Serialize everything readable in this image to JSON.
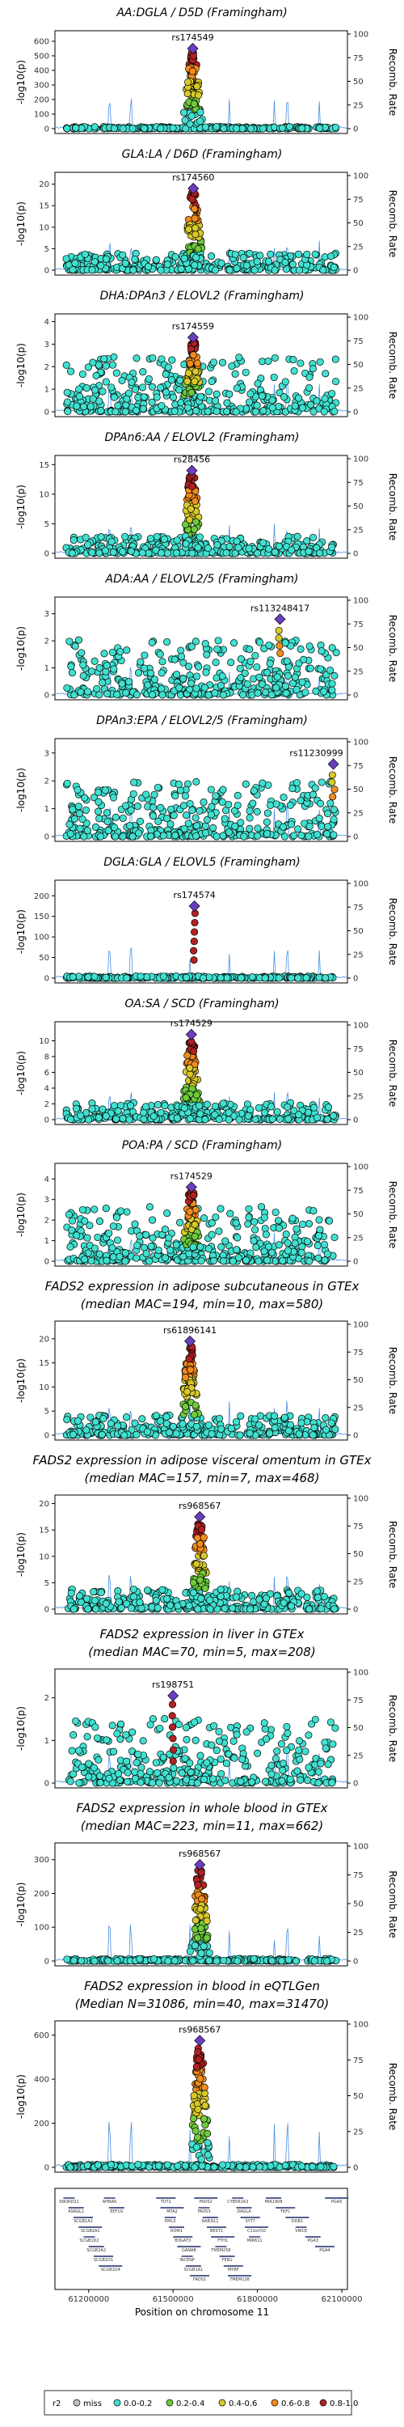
{
  "chart_data": {
    "type": "scatter",
    "colors": {
      "miss": "#bfbfbf",
      "bin1": "#40e0d0",
      "bin2": "#6ecb3c",
      "bin3": "#d8c92a",
      "bin4": "#f08c1e",
      "bin5": "#b22222",
      "lead": "#6a3fbf",
      "recomb": "#4a90e2"
    },
    "recomb_label": "Recomb. Rate",
    "recomb_ticks": [
      0,
      25,
      50,
      75,
      100
    ],
    "panels": [
      {
        "title_lines": [
          "AA:DGLA / D5D (Framingham)"
        ],
        "ymax": 650,
        "yticks": [
          0,
          100,
          200,
          300,
          400,
          500,
          600
        ],
        "ylabel": "-log10(p)",
        "lead_snp": "rs174549",
        "lead_y": 550,
        "lead_pos": 61570000,
        "background": "flat",
        "peak_shape": "tower"
      },
      {
        "title_lines": [
          "GLA:LA / D6D (Framingham)"
        ],
        "ymax": 22,
        "yticks": [
          0,
          5,
          10,
          15,
          20
        ],
        "ylabel": "-log10(p)",
        "lead_snp": "rs174560",
        "lead_y": 19,
        "lead_pos": 61572000,
        "background": "low",
        "peak_shape": "tower"
      },
      {
        "title_lines": [
          "DHA:DPAn3 / ELOVL2 (Framingham)"
        ],
        "ymax": 4.2,
        "yticks": [
          0,
          1,
          2,
          3,
          4
        ],
        "ylabel": "-log10(p)",
        "lead_snp": "rs174559",
        "lead_y": 3.3,
        "lead_pos": 61571000,
        "background": "dense",
        "peak_shape": "tower"
      },
      {
        "title_lines": [
          "DPAn6:AA / ELOVL2 (Framingham)"
        ],
        "ymax": 16,
        "yticks": [
          0,
          5,
          10,
          15
        ],
        "ylabel": "-log10(p)",
        "lead_snp": "rs28456",
        "lead_y": 14,
        "lead_pos": 61567000,
        "background": "low",
        "peak_shape": "tower"
      },
      {
        "title_lines": [
          "ADA:AA / ELOVL2/5 (Framingham)"
        ],
        "ymax": 3.5,
        "yticks": [
          0,
          1,
          2,
          3
        ],
        "ylabel": "-log10(p)",
        "lead_snp": "rs113248417",
        "lead_y": 2.8,
        "lead_pos": 61880000,
        "background": "dense",
        "peak_shape": "none"
      },
      {
        "title_lines": [
          "DPAn3:EPA / ELOVL2/5 (Framingham)"
        ],
        "ymax": 3.4,
        "yticks": [
          0,
          1,
          2,
          3
        ],
        "ylabel": "-log10(p)",
        "lead_snp": "rs11230999",
        "lead_y": 2.6,
        "lead_pos": 62070000,
        "background": "dense",
        "peak_shape": "none"
      },
      {
        "title_lines": [
          "DGLA:GLA / ELOVL5 (Framingham)"
        ],
        "ymax": 230,
        "yticks": [
          0,
          50,
          100,
          150,
          200
        ],
        "ylabel": "-log10(p)",
        "lead_snp": "rs174574",
        "lead_y": 175,
        "lead_pos": 61576000,
        "background": "flat",
        "peak_shape": "sparse"
      },
      {
        "title_lines": [
          "OA:SA / SCD (Framingham)"
        ],
        "ymax": 12,
        "yticks": [
          0,
          2,
          4,
          6,
          8,
          10
        ],
        "ylabel": "-log10(p)",
        "lead_snp": "rs174529",
        "lead_y": 10.8,
        "lead_pos": 61565000,
        "background": "low",
        "peak_shape": "tower"
      },
      {
        "title_lines": [
          "POA:PA / SCD (Framingham)"
        ],
        "ymax": 4.6,
        "yticks": [
          0,
          1,
          2,
          3,
          4
        ],
        "ylabel": "-log10(p)",
        "lead_snp": "rs174529",
        "lead_y": 3.6,
        "lead_pos": 61565000,
        "background": "dense",
        "peak_shape": "tower"
      },
      {
        "title_lines": [
          "FADS2 expression in adipose subcutaneous in GTEx",
          "(median MAC=194, min=10, max=580)"
        ],
        "ymax": 23,
        "yticks": [
          0,
          5,
          10,
          15,
          20
        ],
        "ylabel": "-log10(p)",
        "lead_snp": "rs61896141",
        "lead_y": 19.5,
        "lead_pos": 61560000,
        "background": "low",
        "peak_shape": "tower"
      },
      {
        "title_lines": [
          "FADS2 expression in adipose visceral omentum in GTEx",
          "(median MAC=157, min=7, max=468)"
        ],
        "ymax": 21,
        "yticks": [
          0,
          5,
          10,
          15,
          20
        ],
        "ylabel": "-log10(p)",
        "lead_snp": "rs968567",
        "lead_y": 17.5,
        "lead_pos": 61595000,
        "background": "low",
        "peak_shape": "tower"
      },
      {
        "title_lines": [
          "FADS2 expression in liver in GTEx",
          "(median MAC=70, min=5, max=208)"
        ],
        "ymax": 2.6,
        "yticks": [
          0,
          1,
          2
        ],
        "ylabel": "-log10(p)",
        "lead_snp": "rs198751",
        "lead_y": 2.05,
        "lead_pos": 61500000,
        "background": "dense",
        "peak_shape": "sparse"
      },
      {
        "title_lines": [
          "FADS2 expression in whole blood in GTEx",
          "(median MAC=223, min=11, max=662)"
        ],
        "ymax": 340,
        "yticks": [
          0,
          100,
          200,
          300
        ],
        "ylabel": "-log10(p)",
        "lead_snp": "rs968567",
        "lead_y": 285,
        "lead_pos": 61595000,
        "background": "flat",
        "peak_shape": "tower"
      },
      {
        "title_lines": [
          "FADS2 expression in blood in eQTLGen",
          "(Median N=31086, min=40, max=31470)"
        ],
        "ymax": 650,
        "yticks": [
          0,
          200,
          400,
          600
        ],
        "ylabel": "-log10(p)",
        "lead_snp": "rs968567",
        "lead_y": 575,
        "lead_pos": 61595000,
        "background": "flat",
        "peak_shape": "tower"
      }
    ],
    "x_range": [
      61080000,
      62120000
    ],
    "x_ticks": [
      61200000,
      61500000,
      61800000,
      62100000
    ],
    "x_tick_labels": [
      "61200000",
      "61500000",
      "61800000",
      "62100000"
    ],
    "xlabel": "Position on chromosome 11",
    "genes": [
      "SNORD22",
      "ASRGL1",
      "SCGB1A1",
      "SCGB2A1",
      "SCGB1D2",
      "SCGB2A2",
      "SCGB1D1",
      "SCGB1D4",
      "AHNAK",
      "EEF1G",
      "TUT1",
      "MTA2",
      "EML3",
      "ROM1",
      "B3GAT3",
      "GANAB",
      "INCENP",
      "SCGB1A1",
      "FADS1",
      "FADS2",
      "FADS3",
      "RAB3IL1",
      "BEST1",
      "FTH1",
      "TMEM258",
      "FEN1",
      "MYRF",
      "TMEM138",
      "CYB561A3",
      "DAGLA",
      "SYT7",
      "C11orf10",
      "MIR611",
      "MIR1908",
      "TKFC",
      "DDB1",
      "VWCE",
      "PGA3",
      "PGA4",
      "PGA5"
    ],
    "legend": {
      "title": "r2",
      "entries": [
        "miss",
        "0.0-0.2",
        "0.2-0.4",
        "0.4-0.6",
        "0.6-0.8",
        "0.8-1.0"
      ]
    }
  }
}
